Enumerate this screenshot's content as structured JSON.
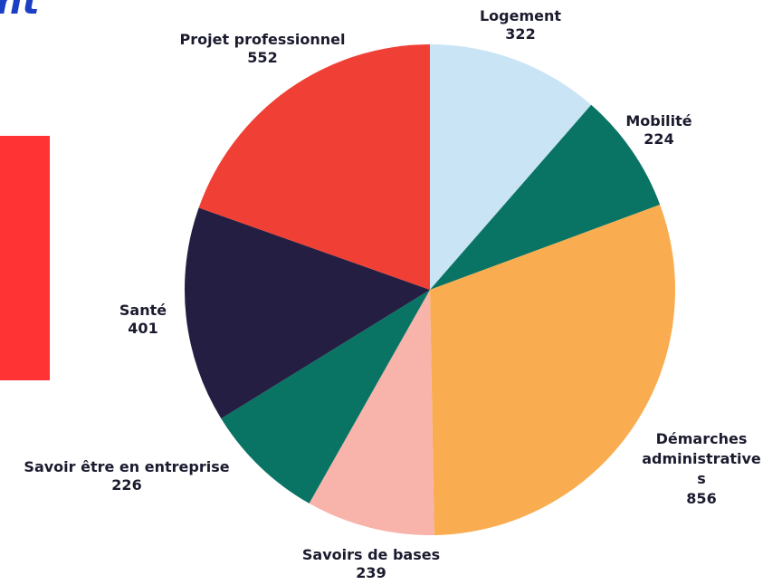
{
  "header": {
    "title_fragment": "nt"
  },
  "chart_data": {
    "type": "pie",
    "title": "",
    "start_angle_deg": 0,
    "direction": "clockwise",
    "slices": [
      {
        "label": "Logement",
        "value": 322,
        "color": "#c9e4f5"
      },
      {
        "label": "Mobilité",
        "value": 224,
        "color": "#097464"
      },
      {
        "label": "Démarches administrative s",
        "value": 856,
        "color": "#f9ad50"
      },
      {
        "label": "Savoirs de bases",
        "value": 239,
        "color": "#f8b3ab"
      },
      {
        "label": "Savoir être en entreprise",
        "value": 226,
        "color": "#097464"
      },
      {
        "label": "Santé",
        "value": 401,
        "color": "#241f42"
      },
      {
        "label": "Projet professionnel",
        "value": 552,
        "color": "#f04035"
      }
    ],
    "labels": [
      {
        "name": "Logement",
        "value": "322"
      },
      {
        "name": "Mobilité",
        "value": "224"
      },
      {
        "name_lines": [
          "Démarches",
          "administrative",
          "s"
        ],
        "value": "856"
      },
      {
        "name": "Savoirs de bases",
        "value": "239"
      },
      {
        "name": "Savoir être en entreprise",
        "value": "226"
      },
      {
        "name": "Santé",
        "value": "401"
      },
      {
        "name": "Projet professionnel",
        "value": "552"
      }
    ]
  }
}
